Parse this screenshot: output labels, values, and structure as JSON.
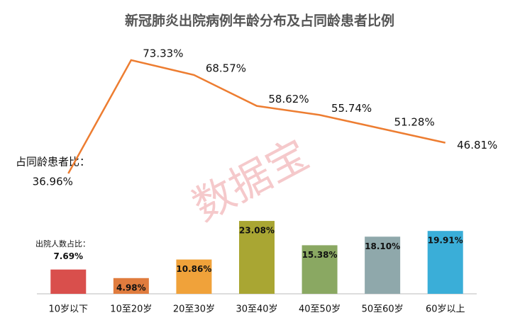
{
  "chart_data": {
    "type": "bar",
    "title": "新冠肺炎出院病例年龄分布及占同龄患者比例",
    "watermark": "数据宝",
    "categories": [
      "10岁以下",
      "10至20岁",
      "20至30岁",
      "30至40岁",
      "40至50岁",
      "50至60岁",
      "60岁以上"
    ],
    "series": [
      {
        "name": "出院人数占比：",
        "type": "bar",
        "colors": [
          "#d94f4c",
          "#e07c3e",
          "#f0a23a",
          "#a9a633",
          "#8aa862",
          "#8fa8ab",
          "#3aaed8"
        ],
        "values": [
          7.69,
          4.98,
          10.86,
          23.08,
          15.38,
          18.1,
          19.91
        ],
        "value_labels": [
          "7.69%",
          "4.98%",
          "10.86%",
          "23.08%",
          "15.38%",
          "18.10%",
          "19.91%"
        ]
      },
      {
        "name": "占同龄患者比：",
        "type": "line",
        "color": "#ed7d31",
        "values": [
          36.96,
          73.33,
          68.57,
          58.62,
          55.74,
          51.28,
          46.81
        ],
        "value_labels": [
          "36.96%",
          "73.33%",
          "68.57%",
          "58.62%",
          "55.74%",
          "51.28%",
          "46.81%"
        ]
      }
    ]
  }
}
